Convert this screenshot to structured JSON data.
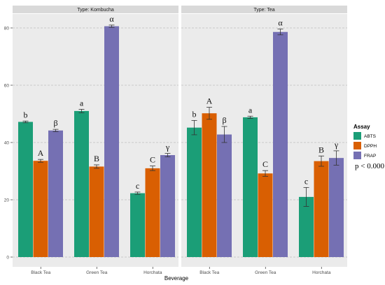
{
  "chart_data": {
    "type": "bar",
    "xlabel": "Beverage",
    "ylabel": "",
    "ylim": [
      0,
      85
    ],
    "yticks": [
      0,
      20,
      40,
      60,
      80
    ],
    "grid": true,
    "legend": {
      "title": "Assay",
      "position": "right",
      "entries": [
        {
          "name": "ABTS",
          "color": "#1b9e77"
        },
        {
          "name": "DPPH",
          "color": "#d95f02"
        },
        {
          "name": "FRAP",
          "color": "#7570b3"
        }
      ]
    },
    "annotation": "p < 0.0001",
    "categories": [
      "Black Tea",
      "Green Tea",
      "Horchata"
    ],
    "panels": [
      {
        "title": "Type: Kombucha",
        "series": [
          {
            "name": "ABTS",
            "values": [
              47.2,
              51.0,
              22.3
            ],
            "errors": [
              0.3,
              0.6,
              0.4
            ],
            "letters": [
              "b",
              "a",
              "c"
            ]
          },
          {
            "name": "DPPH",
            "values": [
              33.6,
              31.6,
              31.0
            ],
            "errors": [
              0.5,
              0.6,
              0.8
            ],
            "letters": [
              "A",
              "B",
              "C"
            ]
          },
          {
            "name": "FRAP",
            "values": [
              44.2,
              80.6,
              35.6
            ],
            "errors": [
              0.4,
              0.4,
              0.6
            ],
            "letters": [
              "β",
              "α",
              "γ"
            ]
          }
        ]
      },
      {
        "title": "Type: Tea",
        "series": [
          {
            "name": "ABTS",
            "values": [
              45.2,
              48.8,
              21.0
            ],
            "errors": [
              2.5,
              0.4,
              3.3
            ],
            "letters": [
              "b",
              "a",
              "c"
            ]
          },
          {
            "name": "DPPH",
            "values": [
              50.2,
              29.2,
              33.5
            ],
            "errors": [
              2.1,
              1.0,
              1.8
            ],
            "letters": [
              "A",
              "C",
              "B"
            ]
          },
          {
            "name": "FRAP",
            "values": [
              42.8,
              78.6,
              34.6
            ],
            "errors": [
              2.8,
              1.0,
              2.5
            ],
            "letters": [
              "β",
              "α",
              "γ"
            ]
          }
        ]
      }
    ]
  }
}
